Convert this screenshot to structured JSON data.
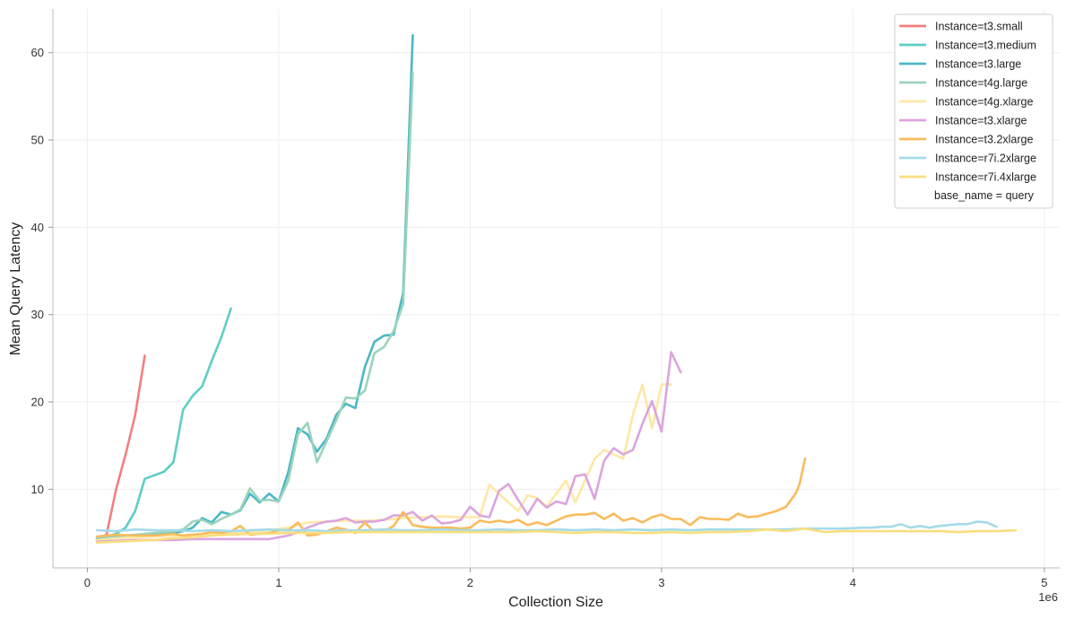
{
  "chart_data": {
    "type": "line",
    "title": "",
    "xlabel": "Collection Size",
    "ylabel": "Mean Query Latency",
    "x_scale_label": "1e6",
    "xlim": [
      -0.18,
      5.08
    ],
    "ylim": [
      1,
      65
    ],
    "x_ticks": [
      0,
      1,
      2,
      3,
      4,
      5
    ],
    "x_tick_labels": [
      "0",
      "1",
      "2",
      "3",
      "4",
      "5"
    ],
    "y_ticks": [
      10,
      20,
      30,
      40,
      50,
      60
    ],
    "y_tick_labels": [
      "10",
      "20",
      "30",
      "40",
      "50",
      "60"
    ],
    "grid": true,
    "legend_position": "top-right",
    "legend_title": "base_name = query",
    "series": [
      {
        "name": "Instance=t3.small",
        "color": "#f47f7f",
        "x": [
          0.05,
          0.1,
          0.15,
          0.2,
          0.25,
          0.3
        ],
        "y": [
          4.3,
          4.8,
          10.0,
          14.0,
          18.5,
          25.3
        ]
      },
      {
        "name": "Instance=t3.medium",
        "color": "#5ecec4",
        "x": [
          0.05,
          0.1,
          0.15,
          0.2,
          0.25,
          0.3,
          0.35,
          0.4,
          0.45,
          0.5,
          0.55,
          0.6,
          0.65,
          0.7,
          0.75
        ],
        "y": [
          4.2,
          4.6,
          4.9,
          5.6,
          7.5,
          11.2,
          11.6,
          12.0,
          13.1,
          19.1,
          20.7,
          21.8,
          24.7,
          27.4,
          30.7
        ]
      },
      {
        "name": "Instance=t3.large",
        "color": "#4ab8c4",
        "x": [
          0.05,
          0.1,
          0.15,
          0.2,
          0.25,
          0.3,
          0.35,
          0.4,
          0.45,
          0.5,
          0.55,
          0.6,
          0.65,
          0.7,
          0.75,
          0.8,
          0.85,
          0.9,
          0.95,
          1.0,
          1.05,
          1.1,
          1.15,
          1.2,
          1.25,
          1.3,
          1.35,
          1.4,
          1.45,
          1.5,
          1.55,
          1.6,
          1.65,
          1.7
        ],
        "y": [
          4.3,
          4.4,
          4.5,
          4.6,
          4.6,
          4.7,
          4.8,
          4.9,
          5.0,
          5.2,
          5.6,
          6.7,
          6.2,
          7.4,
          7.1,
          7.6,
          9.5,
          8.5,
          9.5,
          8.6,
          12.0,
          17.0,
          16.3,
          14.3,
          15.8,
          18.5,
          19.8,
          19.3,
          24.0,
          26.9,
          27.6,
          27.7,
          32.5,
          62.0
        ]
      },
      {
        "name": "Instance=t4g.large",
        "color": "#9cd3bd",
        "x": [
          0.05,
          0.1,
          0.15,
          0.2,
          0.25,
          0.3,
          0.35,
          0.4,
          0.45,
          0.5,
          0.55,
          0.6,
          0.65,
          0.7,
          0.75,
          0.8,
          0.85,
          0.9,
          0.95,
          1.0,
          1.05,
          1.1,
          1.15,
          1.2,
          1.25,
          1.3,
          1.35,
          1.4,
          1.45,
          1.5,
          1.55,
          1.6,
          1.65,
          1.7
        ],
        "y": [
          4.5,
          4.6,
          4.7,
          4.7,
          4.8,
          4.9,
          5.0,
          5.1,
          5.2,
          5.4,
          6.3,
          6.5,
          6.0,
          6.6,
          7.1,
          7.7,
          10.1,
          8.7,
          8.8,
          8.6,
          11.0,
          16.3,
          17.6,
          13.1,
          15.5,
          17.9,
          20.5,
          20.4,
          21.3,
          25.6,
          26.3,
          28.1,
          31.2,
          57.7
        ]
      },
      {
        "name": "Instance=t4g.xlarge",
        "color": "#fde8a6",
        "x": [
          0.05,
          0.15,
          0.25,
          0.35,
          0.45,
          0.55,
          0.65,
          0.75,
          0.85,
          0.95,
          1.05,
          1.15,
          1.25,
          1.35,
          1.45,
          1.55,
          1.65,
          1.75,
          1.85,
          1.95,
          2.05,
          2.1,
          2.15,
          2.2,
          2.25,
          2.3,
          2.35,
          2.4,
          2.45,
          2.5,
          2.55,
          2.6,
          2.65,
          2.7,
          2.75,
          2.8,
          2.85,
          2.9,
          2.95,
          3.0,
          3.05
        ],
        "y": [
          4.2,
          4.4,
          4.5,
          4.6,
          4.7,
          4.8,
          4.9,
          5.0,
          5.1,
          5.3,
          5.6,
          6.2,
          6.3,
          6.4,
          6.4,
          6.5,
          6.7,
          6.8,
          6.9,
          6.8,
          6.8,
          10.5,
          9.5,
          8.5,
          7.5,
          9.3,
          9.0,
          8.0,
          9.5,
          11.0,
          8.5,
          11.0,
          13.5,
          14.5,
          14.0,
          13.5,
          18.5,
          22.0,
          17.0,
          22.0,
          22.0
        ]
      },
      {
        "name": "Instance=t3.xlarge",
        "color": "#dca4de",
        "x": [
          0.05,
          0.15,
          0.25,
          0.35,
          0.45,
          0.55,
          0.65,
          0.75,
          0.85,
          0.95,
          1.05,
          1.1,
          1.15,
          1.2,
          1.25,
          1.3,
          1.35,
          1.4,
          1.45,
          1.5,
          1.55,
          1.6,
          1.65,
          1.7,
          1.75,
          1.8,
          1.85,
          1.9,
          1.95,
          2.0,
          2.05,
          2.1,
          2.15,
          2.2,
          2.25,
          2.3,
          2.35,
          2.4,
          2.45,
          2.5,
          2.55,
          2.6,
          2.65,
          2.7,
          2.75,
          2.8,
          2.85,
          2.9,
          2.95,
          3.0,
          3.05,
          3.1
        ],
        "y": [
          4.0,
          4.1,
          4.2,
          4.2,
          4.2,
          4.3,
          4.3,
          4.3,
          4.3,
          4.3,
          4.7,
          5.1,
          5.6,
          6.0,
          6.3,
          6.4,
          6.7,
          6.2,
          6.3,
          6.3,
          6.5,
          7.0,
          7.0,
          7.4,
          6.4,
          7.0,
          6.1,
          6.2,
          6.5,
          8.0,
          7.0,
          6.8,
          9.8,
          10.6,
          8.8,
          7.1,
          8.9,
          7.9,
          8.6,
          8.3,
          11.5,
          11.7,
          8.9,
          13.3,
          14.7,
          14.0,
          14.5,
          17.5,
          20.1,
          16.6,
          25.7,
          23.4
        ]
      },
      {
        "name": "Instance=t3.2xlarge",
        "color": "#f9bb5c",
        "x": [
          0.05,
          0.15,
          0.25,
          0.35,
          0.45,
          0.5,
          0.55,
          0.6,
          0.65,
          0.7,
          0.75,
          0.8,
          0.85,
          0.9,
          0.95,
          1.0,
          1.05,
          1.1,
          1.15,
          1.2,
          1.25,
          1.3,
          1.35,
          1.4,
          1.45,
          1.5,
          1.55,
          1.6,
          1.65,
          1.7,
          1.75,
          1.8,
          1.85,
          1.9,
          1.95,
          2.0,
          2.05,
          2.1,
          2.15,
          2.2,
          2.25,
          2.3,
          2.35,
          2.4,
          2.45,
          2.5,
          2.55,
          2.6,
          2.65,
          2.7,
          2.75,
          2.8,
          2.85,
          2.9,
          2.95,
          3.0,
          3.05,
          3.1,
          3.15,
          3.2,
          3.25,
          3.3,
          3.35,
          3.4,
          3.45,
          3.5,
          3.55,
          3.6,
          3.65,
          3.7,
          3.72,
          3.75
        ],
        "y": [
          4.6,
          4.8,
          4.7,
          4.7,
          4.9,
          4.7,
          4.8,
          4.9,
          5.1,
          5.0,
          5.2,
          5.8,
          4.8,
          4.9,
          5.0,
          5.3,
          5.3,
          6.2,
          4.7,
          4.8,
          5.2,
          5.6,
          5.4,
          5.0,
          6.2,
          5.1,
          5.2,
          5.8,
          7.4,
          5.9,
          5.7,
          5.6,
          5.6,
          5.6,
          5.5,
          5.6,
          6.4,
          6.2,
          6.4,
          6.2,
          6.5,
          5.9,
          6.2,
          5.9,
          6.4,
          6.9,
          7.1,
          7.1,
          7.3,
          6.6,
          7.2,
          6.4,
          6.7,
          6.2,
          6.8,
          7.1,
          6.6,
          6.6,
          5.9,
          6.8,
          6.6,
          6.6,
          6.5,
          7.2,
          6.8,
          6.9,
          7.2,
          7.5,
          8.0,
          9.5,
          10.5,
          13.5
        ]
      },
      {
        "name": "Instance=r7i.2xlarge",
        "color": "#a4dbe9",
        "x": [
          0.05,
          0.15,
          0.25,
          0.35,
          0.45,
          0.55,
          0.65,
          0.75,
          0.85,
          0.95,
          1.05,
          1.15,
          1.25,
          1.35,
          1.45,
          1.55,
          1.65,
          1.75,
          1.85,
          1.95,
          2.05,
          2.15,
          2.25,
          2.35,
          2.45,
          2.55,
          2.65,
          2.75,
          2.85,
          2.95,
          3.05,
          3.15,
          3.25,
          3.35,
          3.45,
          3.55,
          3.65,
          3.75,
          3.85,
          3.95,
          4.05,
          4.1,
          4.15,
          4.2,
          4.25,
          4.3,
          4.35,
          4.4,
          4.45,
          4.5,
          4.55,
          4.6,
          4.65,
          4.7,
          4.75
        ],
        "y": [
          5.3,
          5.2,
          5.4,
          5.3,
          5.3,
          5.2,
          5.3,
          5.2,
          5.3,
          5.4,
          5.3,
          5.3,
          5.2,
          5.3,
          5.3,
          5.4,
          5.3,
          5.3,
          5.4,
          5.3,
          5.3,
          5.4,
          5.3,
          5.3,
          5.4,
          5.3,
          5.4,
          5.3,
          5.4,
          5.3,
          5.4,
          5.3,
          5.4,
          5.4,
          5.4,
          5.4,
          5.4,
          5.5,
          5.5,
          5.5,
          5.6,
          5.6,
          5.7,
          5.7,
          6.0,
          5.6,
          5.8,
          5.6,
          5.8,
          5.9,
          6.0,
          6.0,
          6.3,
          6.2,
          5.7
        ]
      },
      {
        "name": "Instance=r7i.4xlarge",
        "color": "#f9de7e",
        "x": [
          0.05,
          0.15,
          0.25,
          0.35,
          0.45,
          0.55,
          0.65,
          0.75,
          0.85,
          0.95,
          1.05,
          1.15,
          1.25,
          1.35,
          1.45,
          1.55,
          1.65,
          1.75,
          1.85,
          1.95,
          2.05,
          2.15,
          2.25,
          2.35,
          2.45,
          2.55,
          2.65,
          2.75,
          2.85,
          2.95,
          3.05,
          3.15,
          3.25,
          3.35,
          3.45,
          3.55,
          3.65,
          3.75,
          3.85,
          3.95,
          4.05,
          4.15,
          4.25,
          4.35,
          4.45,
          4.55,
          4.65,
          4.75,
          4.85
        ],
        "y": [
          3.9,
          4.0,
          4.1,
          4.2,
          4.4,
          4.5,
          4.7,
          4.8,
          4.9,
          4.9,
          5.0,
          5.0,
          5.0,
          5.1,
          5.1,
          5.1,
          5.1,
          5.1,
          5.1,
          5.1,
          5.1,
          5.1,
          5.1,
          5.2,
          5.1,
          5.0,
          5.1,
          5.1,
          5.0,
          5.0,
          5.1,
          5.0,
          5.1,
          5.1,
          5.2,
          5.4,
          5.2,
          5.5,
          5.1,
          5.2,
          5.2,
          5.2,
          5.2,
          5.2,
          5.2,
          5.1,
          5.2,
          5.2,
          5.3
        ]
      }
    ]
  }
}
